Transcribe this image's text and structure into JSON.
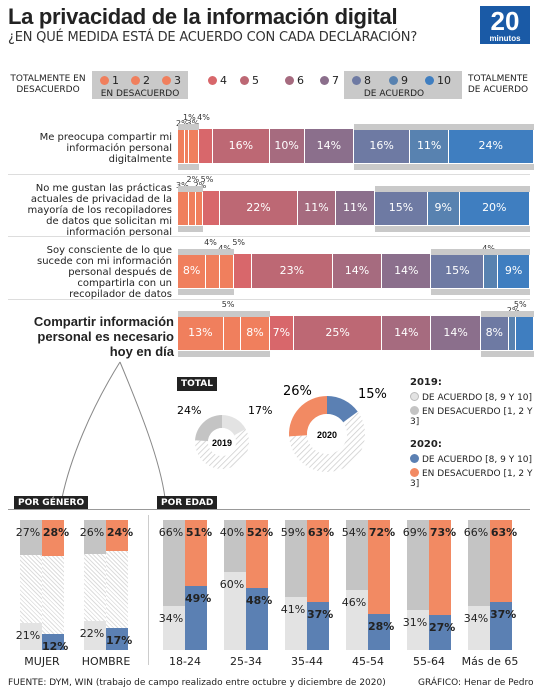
{
  "header": {
    "title": "La privacidad de la información digital",
    "subtitle": "¿EN QUÉ MEDIDA ESTÁ DE ACUERDO CON CADA DECLARACIÓN?",
    "logo_number": "20",
    "logo_word": "minutos"
  },
  "scale": {
    "left_label": "TOTALMENTE EN DESACUERDO",
    "left_group": "EN DESACUERDO",
    "right_group": "DE ACUERDO",
    "right_label": "TOTALMENTE DE ACUERDO",
    "points": [
      "1",
      "2",
      "3",
      "4",
      "5",
      "6",
      "7",
      "8",
      "9",
      "10"
    ],
    "colors": [
      "#f07f5d",
      "#f07f5d",
      "#f07f5d",
      "#d8676b",
      "#bd6874",
      "#a66b7f",
      "#8b6f8c",
      "#6e7aa3",
      "#5882b0",
      "#3f7ec0"
    ]
  },
  "chart_data": {
    "type": "bar",
    "subtype": "stacked-100",
    "categories": [
      "Me preocupa compartir mi información personal digitalmente",
      "No me gustan las prácticas actuales de privacidad de la mayoría de los recopiladores de datos que solicitan mi información personal",
      "Soy consciente de lo que sucede con mi información personal después de compartirla con un recopilador de datos",
      "Compartir información personal es necesario hoy en día"
    ],
    "rows": [
      {
        "values": [
          2,
          1,
          3,
          4,
          16,
          10,
          14,
          16,
          11,
          24
        ],
        "labels": [
          "2%",
          "1%",
          "3%",
          "4%",
          "16%",
          "10%",
          "14%",
          "16%",
          "11%",
          "24%"
        ]
      },
      {
        "values": [
          3,
          2,
          2,
          5,
          22,
          11,
          11,
          15,
          9,
          20
        ],
        "labels": [
          "3%",
          "2%",
          "2%",
          "5%",
          "22%",
          "11%",
          "11%",
          "15%",
          "9%",
          "20%"
        ]
      },
      {
        "values": [
          8,
          4,
          4,
          5,
          23,
          14,
          14,
          15,
          4,
          9
        ],
        "labels": [
          "8%",
          "4%",
          "4%",
          "5%",
          "23%",
          "14%",
          "14%",
          "15%",
          "4%",
          "9%"
        ]
      },
      {
        "values": [
          13,
          5,
          8,
          7,
          25,
          14,
          14,
          8,
          2,
          5
        ],
        "labels": [
          "13%",
          "5%",
          "8%",
          "7%",
          "25%",
          "14%",
          "14%",
          "8%",
          "2%",
          "5%"
        ]
      }
    ],
    "total": {
      "title": "TOTAL",
      "y2019": {
        "label": "2019",
        "agree": 17,
        "disagree": 24,
        "agree_label": "17%",
        "disagree_label": "24%"
      },
      "y2020": {
        "label": "2020",
        "agree": 15,
        "disagree": 26,
        "agree_label": "15%",
        "disagree_label": "26%"
      }
    },
    "legend": {
      "y2019_title": "2019:",
      "y2019_agree": "DE ACUERDO [8, 9 Y 10]",
      "y2019_disagree": "EN DESACUERDO [1, 2 Y 3]",
      "y2020_title": "2020:",
      "y2020_agree": "DE ACUERDO [8, 9 Y 10]",
      "y2020_disagree": "EN DESACUERDO [1, 2 Y 3]"
    },
    "by_gender": {
      "title": "POR GÉNERO",
      "groups": [
        {
          "label": "MUJER",
          "d2019": 27,
          "d2020": 28,
          "a2019": 21,
          "a2020": 12
        },
        {
          "label": "HOMBRE",
          "d2019": 26,
          "d2020": 24,
          "a2019": 22,
          "a2020": 17
        }
      ]
    },
    "by_age": {
      "title": "POR EDAD",
      "groups": [
        {
          "label": "18-24",
          "d2019": 66,
          "d2020": 51,
          "a2019": 34,
          "a2020": 49
        },
        {
          "label": "25-34",
          "d2019": 40,
          "d2020": 52,
          "a2019": 60,
          "a2020": 48
        },
        {
          "label": "35-44",
          "d2019": 59,
          "d2020": 63,
          "a2019": 41,
          "a2020": 37
        },
        {
          "label": "45-54",
          "d2019": 54,
          "d2020": 72,
          "a2019": 46,
          "a2020": 28
        },
        {
          "label": "55-64",
          "d2019": 69,
          "d2020": 73,
          "a2019": 31,
          "a2020": 27
        },
        {
          "label": "Más de 65",
          "d2019": 66,
          "d2020": 63,
          "a2019": 34,
          "a2020": 37
        }
      ]
    }
  },
  "colors": {
    "disagree2019": "#c4c4c4",
    "agree2019": "#e3e3e3",
    "disagree2020": "#f28a63",
    "agree2020": "#5b80b3",
    "bar_gray": "#c9c9c9"
  },
  "footer": {
    "source": "FUENTE: DYM, WIN (trabajo de campo realizado entre octubre y diciembre de 2020)",
    "credit": "GRÁFICO: Henar de Pedro"
  }
}
